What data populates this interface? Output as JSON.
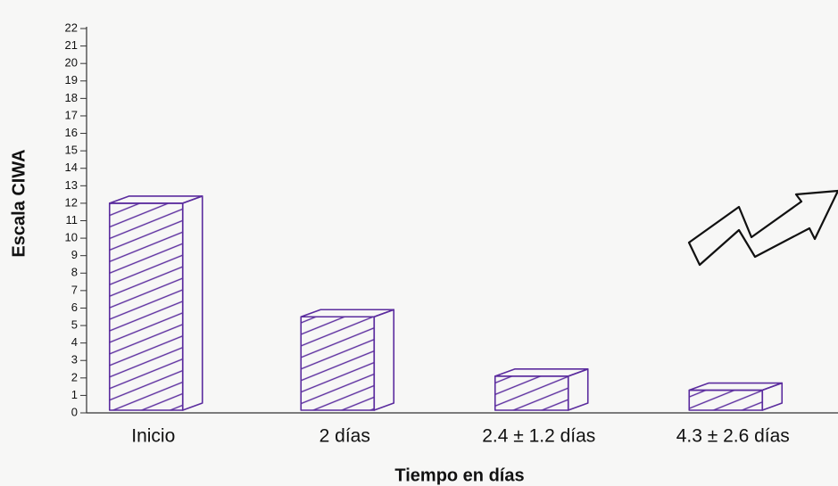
{
  "chart_data": {
    "type": "bar",
    "categories": [
      "Inicio",
      "2 días",
      "2.4 ± 1.2 días",
      "4.3 ± 2.6 días"
    ],
    "values": [
      12,
      5.5,
      2.1,
      1.3
    ],
    "color": "#5b2c9e",
    "xlabel": "Tiempo en días",
    "ylabel": "Escala CIWA",
    "ylim": [
      0,
      22
    ],
    "yticks": [
      0,
      1,
      2,
      3,
      4,
      5,
      6,
      7,
      8,
      9,
      10,
      11,
      12,
      13,
      14,
      15,
      16,
      17,
      18,
      19,
      20,
      21,
      22
    ],
    "grid": false
  }
}
